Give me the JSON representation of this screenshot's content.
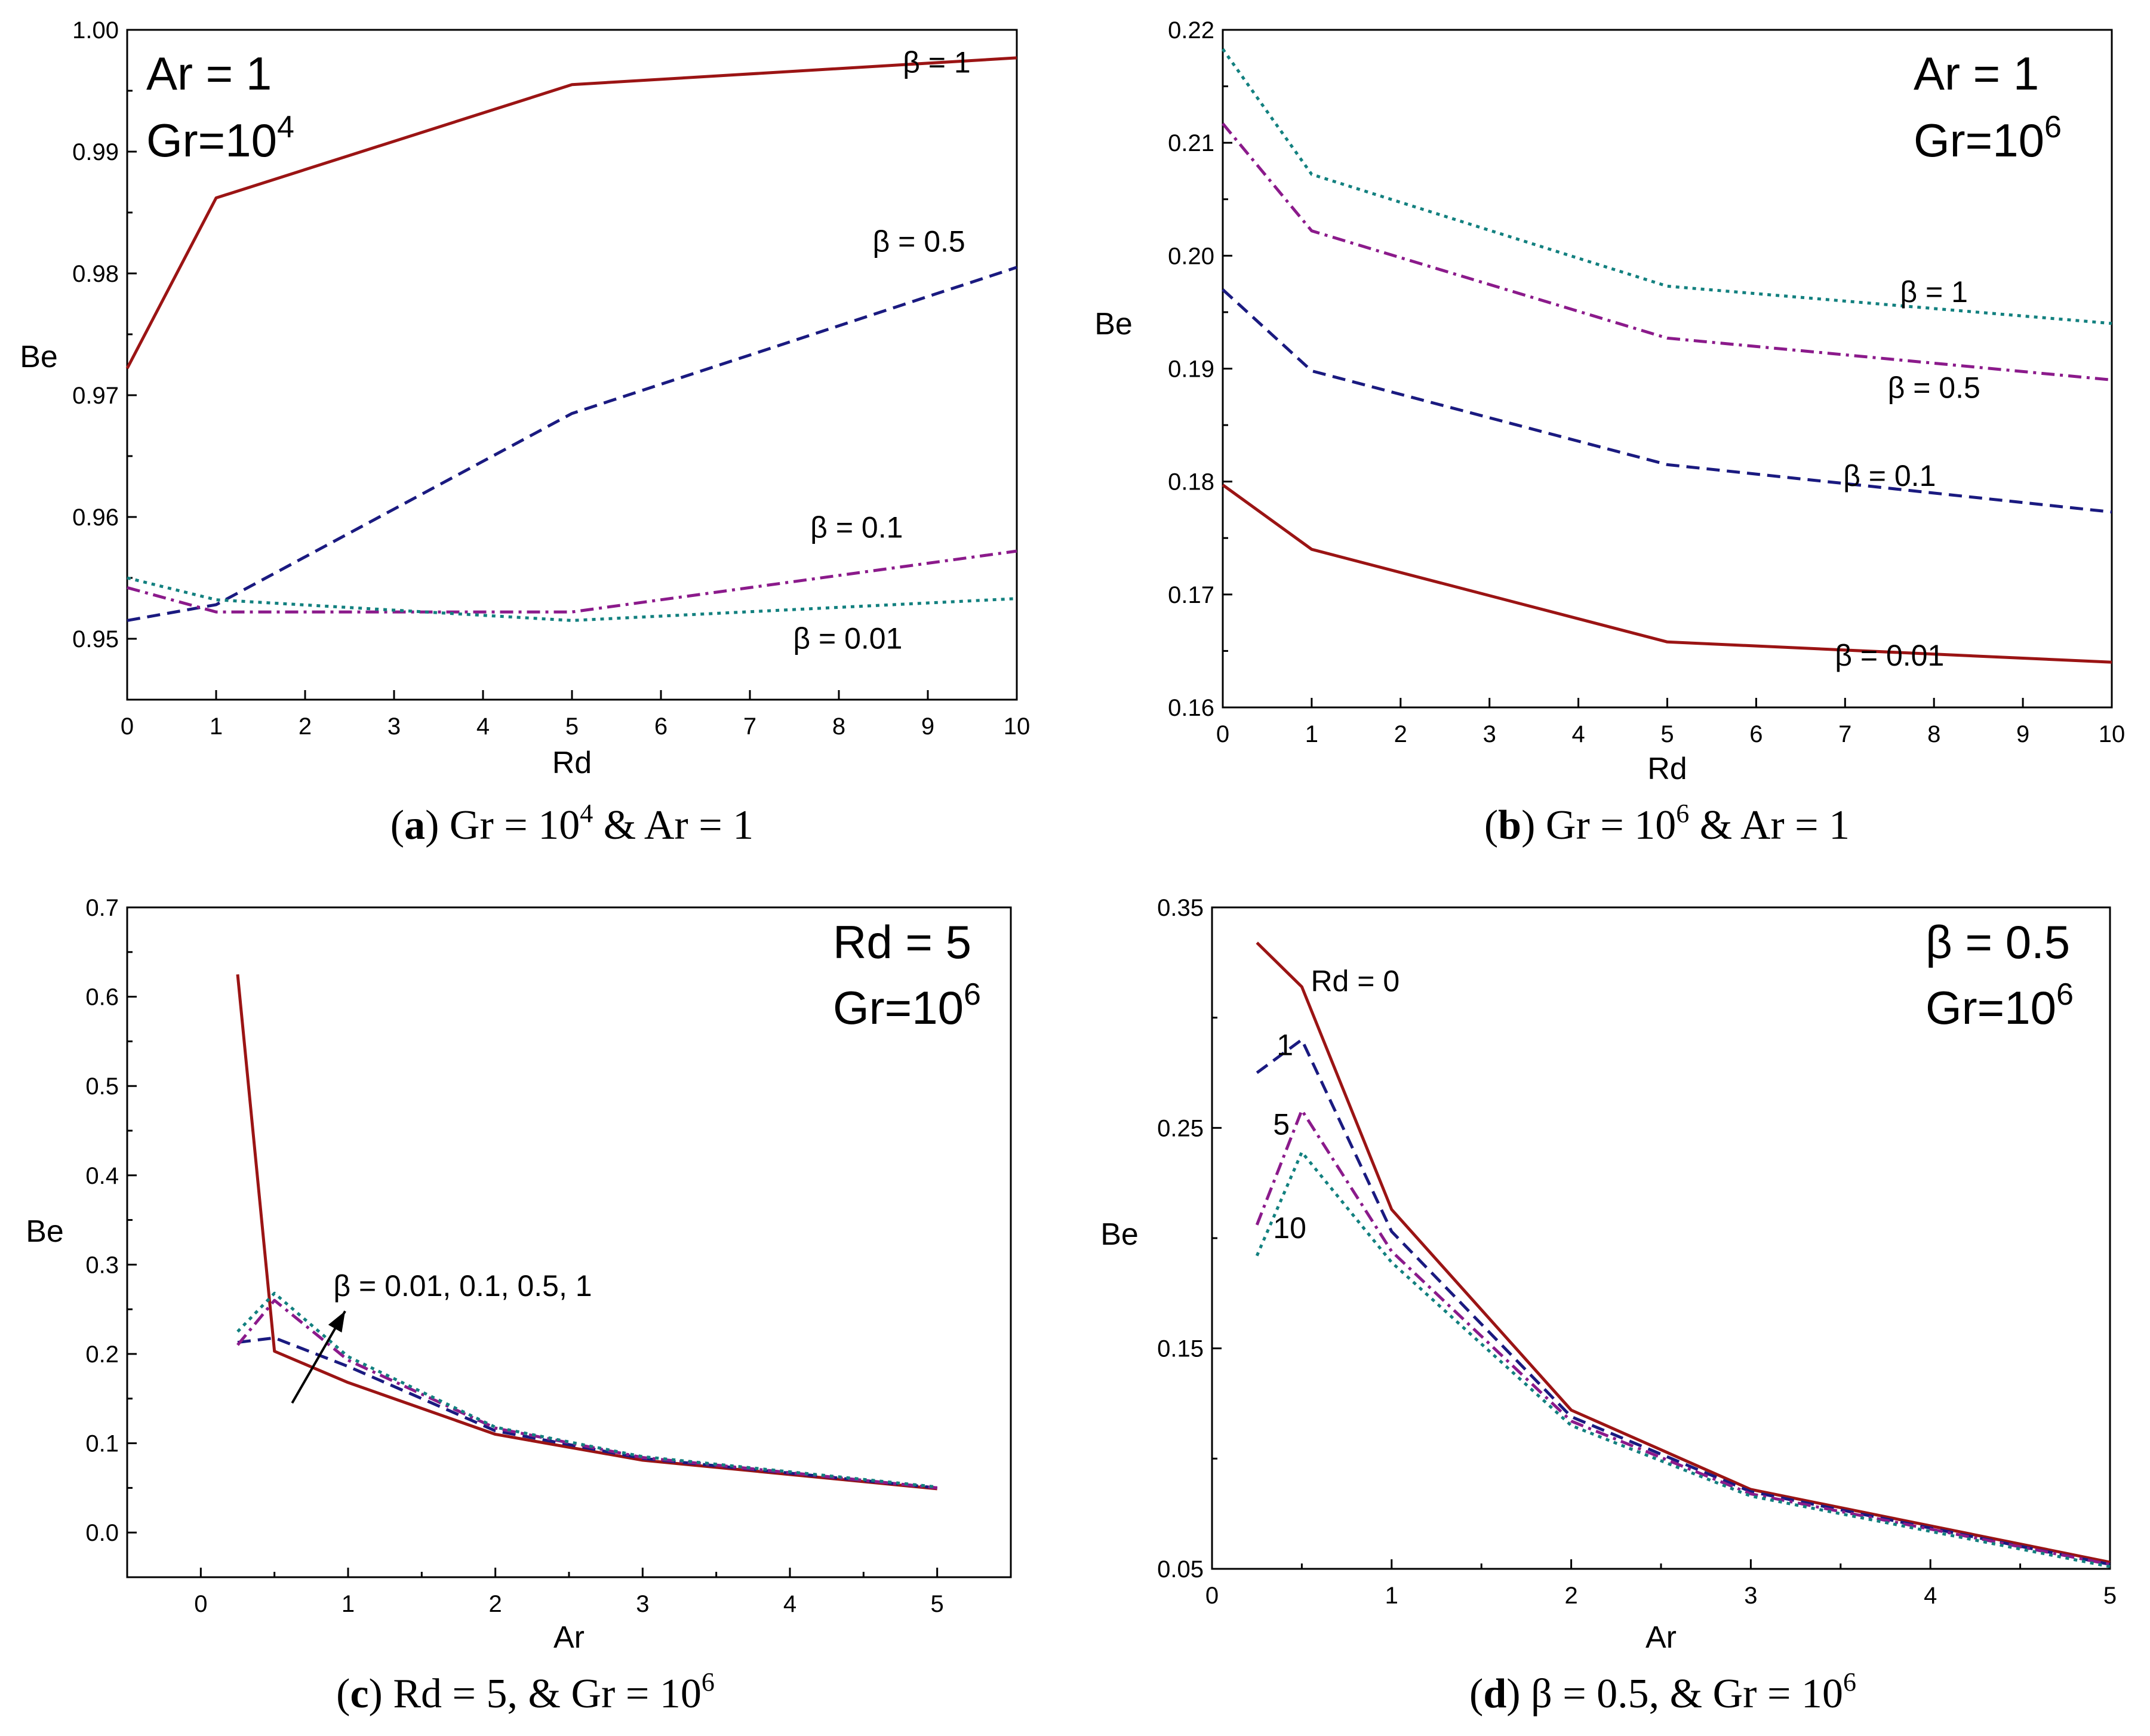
{
  "colors": {
    "red": "#9b1414",
    "navy": "#1a1a80",
    "purple": "#8b1a8b",
    "teal": "#12807f",
    "axis": "#000000"
  },
  "chart_data": [
    {
      "id": "a",
      "type": "line",
      "xlabel": "Rd",
      "ylabel": "Be",
      "xlim": [
        0,
        10
      ],
      "ylim": [
        0.945,
        1.0
      ],
      "xticks": [
        "0",
        "1",
        "2",
        "3",
        "4",
        "5",
        "6",
        "7",
        "8",
        "9",
        "10"
      ],
      "yticks": [
        "0.95",
        "0.96",
        "0.97",
        "0.98",
        "0.99",
        "1.00"
      ],
      "annotation_lines": [
        "Ar = 1",
        "Gr=10",
        "4"
      ],
      "caption": {
        "id": "a",
        "text": "Gr = 10",
        "sup": "4",
        "rest": " & Ar = 1"
      },
      "series": [
        {
          "name": "β = 1",
          "color": "red",
          "dash": "solid",
          "x": [
            0,
            1,
            5,
            10
          ],
          "y": [
            0.9722,
            0.9862,
            0.9955,
            0.9977
          ]
        },
        {
          "name": "β = 0.5",
          "color": "navy",
          "dash": "dash",
          "x": [
            0,
            1,
            5,
            10
          ],
          "y": [
            0.9515,
            0.9528,
            0.9685,
            0.9805
          ]
        },
        {
          "name": "β = 0.1",
          "color": "purple",
          "dash": "dashdot",
          "x": [
            0,
            1,
            5,
            10
          ],
          "y": [
            0.9542,
            0.9522,
            0.9522,
            0.9572
          ]
        },
        {
          "name": "β = 0.01",
          "color": "teal",
          "dash": "dot",
          "x": [
            0,
            1,
            5,
            10
          ],
          "y": [
            0.955,
            0.9532,
            0.9515,
            0.9533
          ]
        }
      ]
    },
    {
      "id": "b",
      "type": "line",
      "xlabel": "Rd",
      "ylabel": "Be",
      "xlim": [
        0,
        10
      ],
      "ylim": [
        0.16,
        0.22
      ],
      "xticks": [
        "0",
        "1",
        "2",
        "3",
        "4",
        "5",
        "6",
        "7",
        "8",
        "9",
        "10"
      ],
      "yticks": [
        "0.16",
        "0.17",
        "0.18",
        "0.19",
        "0.20",
        "0.21",
        "0.22"
      ],
      "annotation_lines": [
        "Ar = 1",
        "Gr=10",
        "6"
      ],
      "caption": {
        "id": "b",
        "text": "Gr = 10",
        "sup": "6",
        "rest": " & Ar = 1"
      },
      "series": [
        {
          "name": "β = 1",
          "color": "teal",
          "dash": "dot",
          "x": [
            0,
            1,
            5,
            10
          ],
          "y": [
            0.2183,
            0.2072,
            0.1973,
            0.194
          ]
        },
        {
          "name": "β = 0.5",
          "color": "purple",
          "dash": "dashdot",
          "x": [
            0,
            1,
            5,
            10
          ],
          "y": [
            0.2117,
            0.2022,
            0.1927,
            0.189
          ]
        },
        {
          "name": "β = 0.1",
          "color": "navy",
          "dash": "dash",
          "x": [
            0,
            1,
            5,
            10
          ],
          "y": [
            0.197,
            0.1898,
            0.1815,
            0.1773
          ]
        },
        {
          "name": "β = 0.01",
          "color": "red",
          "dash": "solid",
          "x": [
            0,
            1,
            5,
            10
          ],
          "y": [
            0.1797,
            0.174,
            0.1658,
            0.164
          ]
        }
      ]
    },
    {
      "id": "c",
      "type": "line",
      "xlabel": "Ar",
      "ylabel": "Be",
      "xlim": [
        -0.5,
        5.5
      ],
      "ylim": [
        -0.05,
        0.7
      ],
      "xticks": [
        "0",
        "1",
        "2",
        "3",
        "4",
        "5"
      ],
      "yticks": [
        "0.0",
        "0.1",
        "0.2",
        "0.3",
        "0.4",
        "0.5",
        "0.6",
        "0.7"
      ],
      "annotation_lines": [
        "Rd = 5",
        "Gr=10",
        "6"
      ],
      "arrow_label": "β = 0.01, 0.1, 0.5, 1",
      "caption": {
        "id": "c",
        "text": "Rd = 5, & Gr = 10",
        "sup": "6",
        "rest": ""
      },
      "series": [
        {
          "name": "β = 0.01",
          "color": "red",
          "dash": "solid",
          "x": [
            0.25,
            0.5,
            1,
            2,
            3,
            5
          ],
          "y": [
            0.625,
            0.203,
            0.168,
            0.11,
            0.081,
            0.049
          ]
        },
        {
          "name": "β = 0.1",
          "color": "navy",
          "dash": "dash",
          "x": [
            0.25,
            0.5,
            1,
            2,
            3,
            5
          ],
          "y": [
            0.213,
            0.218,
            0.186,
            0.114,
            0.083,
            0.05
          ]
        },
        {
          "name": "β = 0.5",
          "color": "purple",
          "dash": "dashdot",
          "x": [
            0.25,
            0.5,
            1,
            2,
            3,
            5
          ],
          "y": [
            0.21,
            0.26,
            0.193,
            0.117,
            0.084,
            0.05
          ]
        },
        {
          "name": "β = 1",
          "color": "teal",
          "dash": "dot",
          "x": [
            0.25,
            0.5,
            1,
            2,
            3,
            5
          ],
          "y": [
            0.225,
            0.268,
            0.197,
            0.118,
            0.085,
            0.051
          ]
        }
      ]
    },
    {
      "id": "d",
      "type": "line",
      "xlabel": "Ar",
      "ylabel": "Be",
      "xlim": [
        0,
        5
      ],
      "ylim": [
        0.05,
        0.35
      ],
      "xticks": [
        "0",
        "1",
        "2",
        "3",
        "4",
        "5"
      ],
      "yticks": [
        "0.05",
        "0.15",
        "0.25",
        "0.35"
      ],
      "annotation_lines": [
        "β = 0.5",
        "Gr=10",
        "6"
      ],
      "caption": {
        "id": "d",
        "text": "β = 0.5, & Gr = 10",
        "sup": "6",
        "rest": ""
      },
      "series": [
        {
          "name": "Rd = 0",
          "color": "red",
          "dash": "solid",
          "x": [
            0.25,
            0.5,
            1,
            2,
            3,
            5
          ],
          "y": [
            0.334,
            0.314,
            0.213,
            0.122,
            0.086,
            0.053
          ]
        },
        {
          "name": "1",
          "color": "navy",
          "dash": "dash",
          "x": [
            0.25,
            0.5,
            1,
            2,
            3,
            5
          ],
          "y": [
            0.275,
            0.29,
            0.203,
            0.119,
            0.085,
            0.052
          ]
        },
        {
          "name": "5",
          "color": "purple",
          "dash": "dashdot",
          "x": [
            0.25,
            0.5,
            1,
            2,
            3,
            5
          ],
          "y": [
            0.206,
            0.258,
            0.194,
            0.117,
            0.084,
            0.052
          ]
        },
        {
          "name": "10",
          "color": "teal",
          "dash": "dot",
          "x": [
            0.25,
            0.5,
            1,
            2,
            3,
            5
          ],
          "y": [
            0.192,
            0.239,
            0.189,
            0.115,
            0.083,
            0.051
          ]
        }
      ]
    }
  ]
}
